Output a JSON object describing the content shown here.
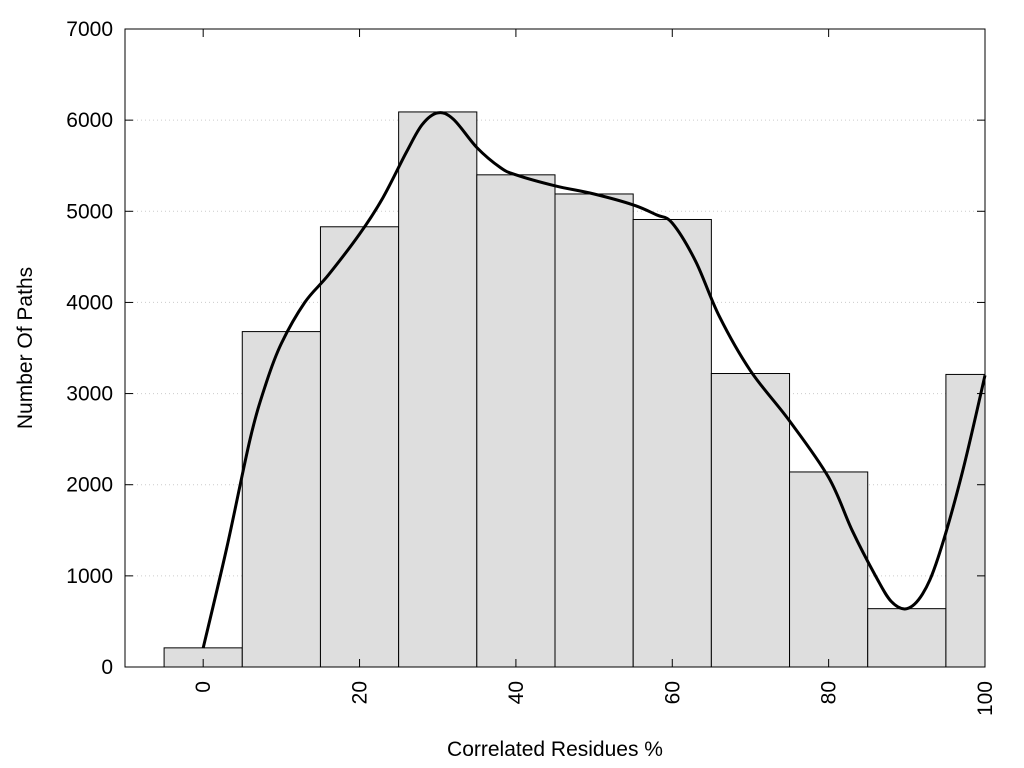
{
  "chart_data": {
    "type": "bar",
    "title": "",
    "xlabel": "Correlated Residues %",
    "ylabel": "Number Of Paths",
    "xlim": [
      -10,
      100
    ],
    "ylim": [
      0,
      7000
    ],
    "bar_width": 10,
    "bars": [
      {
        "x": 0,
        "value": 210
      },
      {
        "x": 10,
        "value": 3680
      },
      {
        "x": 20,
        "value": 4830
      },
      {
        "x": 30,
        "value": 6090
      },
      {
        "x": 40,
        "value": 5400
      },
      {
        "x": 50,
        "value": 5190
      },
      {
        "x": 60,
        "value": 4910
      },
      {
        "x": 70,
        "value": 3220
      },
      {
        "x": 80,
        "value": 2140
      },
      {
        "x": 90,
        "value": 640
      },
      {
        "x": 100,
        "value": 3210
      }
    ],
    "curve": {
      "x": [
        0,
        3,
        6,
        8,
        10,
        13,
        16,
        20,
        23,
        26,
        28,
        30,
        32,
        35,
        38,
        40,
        45,
        50,
        55,
        58,
        60,
        63,
        66,
        70,
        75,
        80,
        83,
        86,
        88,
        90,
        92,
        94,
        97,
        100
      ],
      "y": [
        210,
        1300,
        2500,
        3100,
        3550,
        4000,
        4300,
        4750,
        5150,
        5650,
        5950,
        6080,
        6010,
        5700,
        5480,
        5400,
        5280,
        5190,
        5070,
        4960,
        4870,
        4450,
        3850,
        3250,
        2700,
        2080,
        1500,
        1000,
        720,
        640,
        800,
        1200,
        2100,
        3200
      ]
    },
    "xticks": [
      0,
      20,
      40,
      60,
      80,
      100
    ],
    "yticks": [
      0,
      1000,
      2000,
      3000,
      4000,
      5000,
      6000,
      7000
    ],
    "grid": "horizontal-dotted",
    "colors": {
      "bar_fill": "#dedede",
      "bar_stroke": "#000000",
      "curve": "#000000",
      "grid": "#cccccc"
    }
  }
}
